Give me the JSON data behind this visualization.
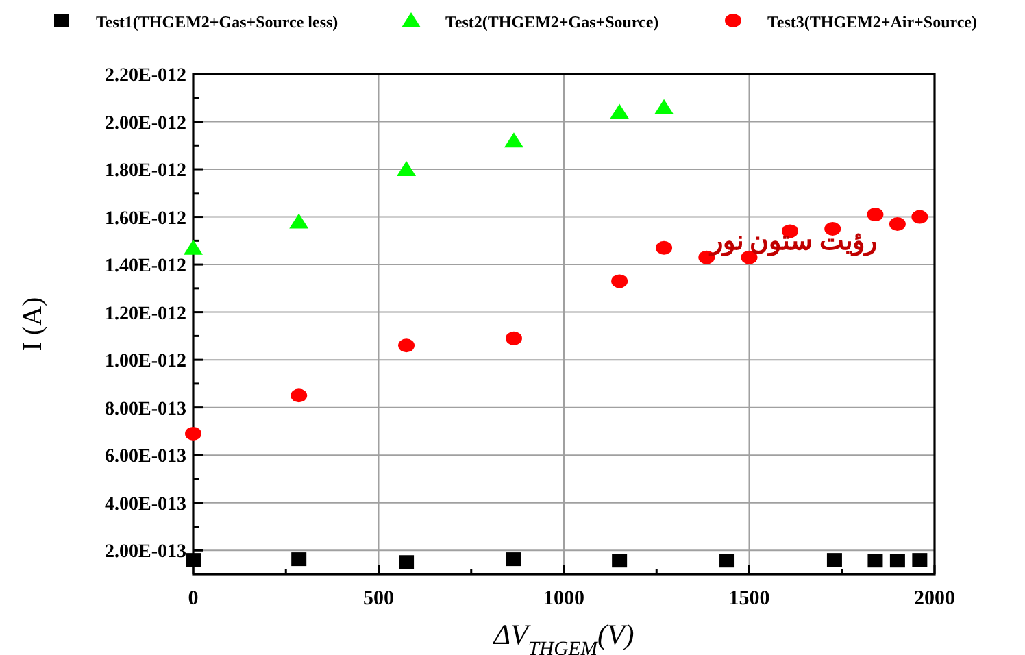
{
  "chart_data": {
    "type": "scatter",
    "xlabel": "ΔV$_{THGEM}$(V)",
    "ylabel": "I (A)",
    "xlim": [
      0,
      2000
    ],
    "xticks": [
      0,
      {
        "value": 250,
        "label": null
      },
      500,
      {
        "value": 750,
        "label": null
      },
      1000,
      {
        "value": 1250,
        "label": null
      },
      1500,
      {
        "value": 1750,
        "label": null
      },
      2000
    ],
    "ylim": [
      1e-13,
      2.2e-12
    ],
    "yticks": [
      {
        "value": 2e-13,
        "label": "2.00E-013"
      },
      {
        "value": 3e-13,
        "label": null
      },
      {
        "value": 4e-13,
        "label": "4.00E-013"
      },
      {
        "value": 5e-13,
        "label": null
      },
      {
        "value": 6e-13,
        "label": "6.00E-013"
      },
      {
        "value": 7e-13,
        "label": null
      },
      {
        "value": 8e-13,
        "label": "8.00E-013"
      },
      {
        "value": 9e-13,
        "label": null
      },
      {
        "value": 1e-12,
        "label": "1.00E-012"
      },
      {
        "value": 1.1e-12,
        "label": null
      },
      {
        "value": 1.2e-12,
        "label": "1.20E-012"
      },
      {
        "value": 1.3e-12,
        "label": null
      },
      {
        "value": 1.4e-12,
        "label": "1.40E-012"
      },
      {
        "value": 1.5e-12,
        "label": null
      },
      {
        "value": 1.6e-12,
        "label": "1.60E-012"
      },
      {
        "value": 1.7e-12,
        "label": null
      },
      {
        "value": 1.8e-12,
        "label": "1.80E-012"
      },
      {
        "value": 1.9e-12,
        "label": null
      },
      {
        "value": 2e-12,
        "label": "2.00E-012"
      },
      {
        "value": 2.1e-12,
        "label": null
      },
      {
        "value": 2.2e-12,
        "label": "2.20E-012"
      }
    ],
    "grid": true,
    "legend": "top",
    "annotations": [
      "رؤیت ستون نور"
    ],
    "series": [
      {
        "name": "Test1(THGEM2+Gas+Source less)",
        "color": "#000000",
        "marker": "square",
        "x": [
          0,
          285,
          575,
          865,
          1150,
          1440,
          1730,
          1840,
          1900,
          1960
        ],
        "values": [
          1.6e-13,
          1.63e-13,
          1.51e-13,
          1.63e-13,
          1.57e-13,
          1.57e-13,
          1.6e-13,
          1.57e-13,
          1.57e-13,
          1.6e-13
        ]
      },
      {
        "name": "Test2(THGEM2+Gas+Source)",
        "color": "#00ff00",
        "marker": "triangle",
        "x": [
          0,
          285,
          575,
          865,
          1150,
          1270
        ],
        "values": [
          1.47e-12,
          1.58e-12,
          1.8e-12,
          1.92e-12,
          2.04e-12,
          2.06e-12
        ]
      },
      {
        "name": "Test3(THGEM2+Air+Source)",
        "color": "#ff0000",
        "marker": "circle",
        "x": [
          0,
          285,
          575,
          865,
          1150,
          1270,
          1385,
          1500,
          1610,
          1725,
          1840,
          1900,
          1960
        ],
        "values": [
          6.9e-13,
          8.5e-13,
          1.06e-12,
          1.09e-12,
          1.33e-12,
          1.47e-12,
          1.43e-12,
          1.43e-12,
          1.54e-12,
          1.55e-12,
          1.61e-12,
          1.57e-12,
          1.6e-12
        ]
      }
    ]
  }
}
